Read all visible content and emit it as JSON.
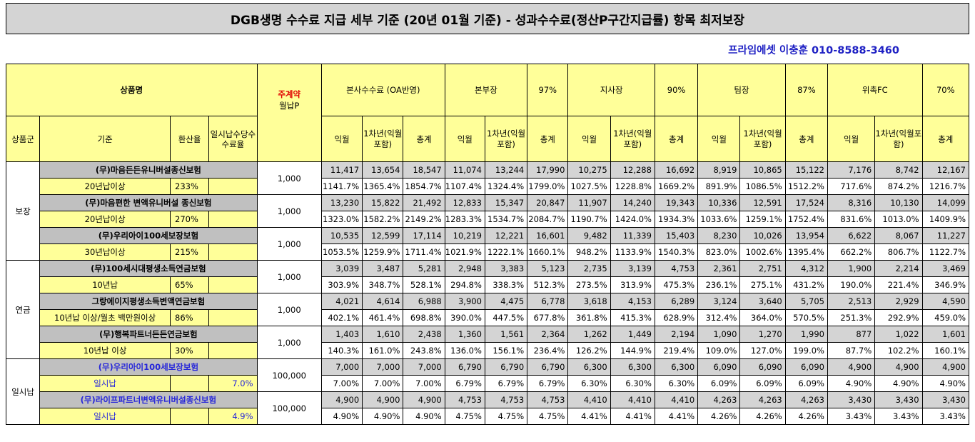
{
  "title": "DGB생명 수수료 지급 세부 기준 (20년 01월 기준) - 성과수수료(정산P구간지급률) 항목 최저보장",
  "contact": "프라임에셋 이충훈 010-8588-3460",
  "header": {
    "product_name": "상품명",
    "main_contract": "주계약",
    "monthly_premium": "월납P",
    "group": "상품군",
    "criteria": "기준",
    "conversion": "환산율",
    "lump_commission": "일시납수당수수료율",
    "hq_oa": "본사수수료 (OA반영)",
    "tiers": [
      {
        "name": "본부장",
        "rate": "97%"
      },
      {
        "name": "지사장",
        "rate": "90%"
      },
      {
        "name": "팀장",
        "rate": "87%"
      },
      {
        "name": "위촉FC",
        "rate": "70%"
      }
    ],
    "sub": {
      "first_month": "익월",
      "first_year": "1차년(익월포함)",
      "total": "총계"
    }
  },
  "groups": [
    {
      "name": "보장",
      "products": [
        {
          "name": "(무)마음든든유니버설종신보험",
          "criteria": "20년납이상",
          "conv": "233%",
          "lump": "",
          "premium": "1,000",
          "amounts": [
            "11,417",
            "13,654",
            "18,547",
            "11,074",
            "13,244",
            "17,990",
            "10,275",
            "12,288",
            "16,692",
            "8,919",
            "10,865",
            "15,122",
            "7,176",
            "8,742",
            "12,167"
          ],
          "rates": [
            "1141.7%",
            "1365.4%",
            "1854.7%",
            "1107.4%",
            "1324.4%",
            "1799.0%",
            "1027.5%",
            "1228.8%",
            "1669.2%",
            "891.9%",
            "1086.5%",
            "1512.2%",
            "717.6%",
            "874.2%",
            "1216.7%"
          ]
        },
        {
          "name": "(무)마음편한 변액유니버설 종신보험",
          "criteria": "20년납이상",
          "conv": "270%",
          "lump": "",
          "premium": "1,000",
          "amounts": [
            "13,230",
            "15,822",
            "21,492",
            "12,833",
            "15,347",
            "20,847",
            "11,907",
            "14,240",
            "19,343",
            "10,336",
            "12,591",
            "17,524",
            "8,316",
            "10,130",
            "14,099"
          ],
          "rates": [
            "1323.0%",
            "1582.2%",
            "2149.2%",
            "1283.3%",
            "1534.7%",
            "2084.7%",
            "1190.7%",
            "1424.0%",
            "1934.3%",
            "1033.6%",
            "1259.1%",
            "1752.4%",
            "831.6%",
            "1013.0%",
            "1409.9%"
          ]
        },
        {
          "name": "(무)우리아이100세보장보험",
          "criteria": "30년납이상",
          "conv": "215%",
          "lump": "",
          "premium": "1,000",
          "amounts": [
            "10,535",
            "12,599",
            "17,114",
            "10,219",
            "12,221",
            "16,601",
            "9,482",
            "11,339",
            "15,403",
            "8,230",
            "10,026",
            "13,954",
            "6,622",
            "8,067",
            "11,227"
          ],
          "rates": [
            "1053.5%",
            "1259.9%",
            "1711.4%",
            "1021.9%",
            "1222.1%",
            "1660.1%",
            "948.2%",
            "1133.9%",
            "1540.3%",
            "823.0%",
            "1002.6%",
            "1395.4%",
            "662.2%",
            "806.7%",
            "1122.7%"
          ]
        }
      ]
    },
    {
      "name": "연금",
      "products": [
        {
          "name": "(무)100세시대평생소득연금보험",
          "criteria": "10년납",
          "conv": "65%",
          "lump": "",
          "premium": "1,000",
          "amounts": [
            "3,039",
            "3,487",
            "5,281",
            "2,948",
            "3,383",
            "5,123",
            "2,735",
            "3,139",
            "4,753",
            "2,361",
            "2,751",
            "4,312",
            "1,900",
            "2,214",
            "3,469"
          ],
          "rates": [
            "303.9%",
            "348.7%",
            "528.1%",
            "294.8%",
            "338.3%",
            "512.3%",
            "273.5%",
            "313.9%",
            "475.3%",
            "236.1%",
            "275.1%",
            "431.2%",
            "190.0%",
            "221.4%",
            "346.9%"
          ]
        },
        {
          "name": "그랑에이지평생소득변액연금보험",
          "criteria": "10년납 이상/월초 백만원이상",
          "conv": "86%",
          "lump": "",
          "premium": "1,000",
          "amounts": [
            "4,021",
            "4,614",
            "6,988",
            "3,900",
            "4,475",
            "6,778",
            "3,618",
            "4,153",
            "6,289",
            "3,124",
            "3,640",
            "5,705",
            "2,513",
            "2,929",
            "4,590"
          ],
          "rates": [
            "402.1%",
            "461.4%",
            "698.8%",
            "390.0%",
            "447.5%",
            "677.8%",
            "361.8%",
            "415.3%",
            "628.9%",
            "312.4%",
            "364.0%",
            "570.5%",
            "251.3%",
            "292.9%",
            "459.0%"
          ]
        },
        {
          "name": "(무)행복파트너든든연금보험",
          "criteria": "10년납 이상",
          "conv": "30%",
          "lump": "",
          "premium": "1,000",
          "amounts": [
            "1,403",
            "1,610",
            "2,438",
            "1,360",
            "1,561",
            "2,364",
            "1,262",
            "1,449",
            "2,194",
            "1,090",
            "1,270",
            "1,990",
            "877",
            "1,022",
            "1,601"
          ],
          "rates": [
            "140.3%",
            "161.0%",
            "243.8%",
            "136.0%",
            "156.1%",
            "236.4%",
            "126.2%",
            "144.9%",
            "219.4%",
            "109.0%",
            "127.0%",
            "199.0%",
            "87.7%",
            "102.2%",
            "160.1%"
          ]
        }
      ]
    },
    {
      "name": "일시납",
      "products": [
        {
          "name": "(무)우리아이100세보장보험",
          "criteria": "일시납",
          "conv": "",
          "lump": "7.0%",
          "premium": "100,000",
          "amounts": [
            "7,000",
            "7,000",
            "7,000",
            "6,790",
            "6,790",
            "6,790",
            "6,300",
            "6,300",
            "6,300",
            "6,090",
            "6,090",
            "6,090",
            "4,900",
            "4,900",
            "4,900"
          ],
          "rates": [
            "7.00%",
            "7.00%",
            "7.00%",
            "6.79%",
            "6.79%",
            "6.79%",
            "6.30%",
            "6.30%",
            "6.30%",
            "6.09%",
            "6.09%",
            "6.09%",
            "4.90%",
            "4.90%",
            "4.90%"
          ]
        },
        {
          "name": "(무)라이프파트너변액유니버설종신보험",
          "criteria": "일시납",
          "conv": "",
          "lump": "4.9%",
          "premium": "100,000",
          "amounts": [
            "4,900",
            "4,900",
            "4,900",
            "4,753",
            "4,753",
            "4,753",
            "4,410",
            "4,410",
            "4,410",
            "4,263",
            "4,263",
            "4,263",
            "3,430",
            "3,430",
            "3,430"
          ],
          "rates": [
            "4.90%",
            "4.90%",
            "4.90%",
            "4.75%",
            "4.75%",
            "4.75%",
            "4.41%",
            "4.41%",
            "4.41%",
            "4.26%",
            "4.26%",
            "4.26%",
            "3.43%",
            "3.43%",
            "3.43%"
          ]
        }
      ]
    }
  ],
  "colors": {
    "header_bg": "#ffff99",
    "product_bg": "#c0c0c0",
    "number_bg": "#d4d4d4",
    "title_bg": "#d4d4d4",
    "accent_blue": "#1f21c4",
    "accent_red": "#e00000"
  }
}
